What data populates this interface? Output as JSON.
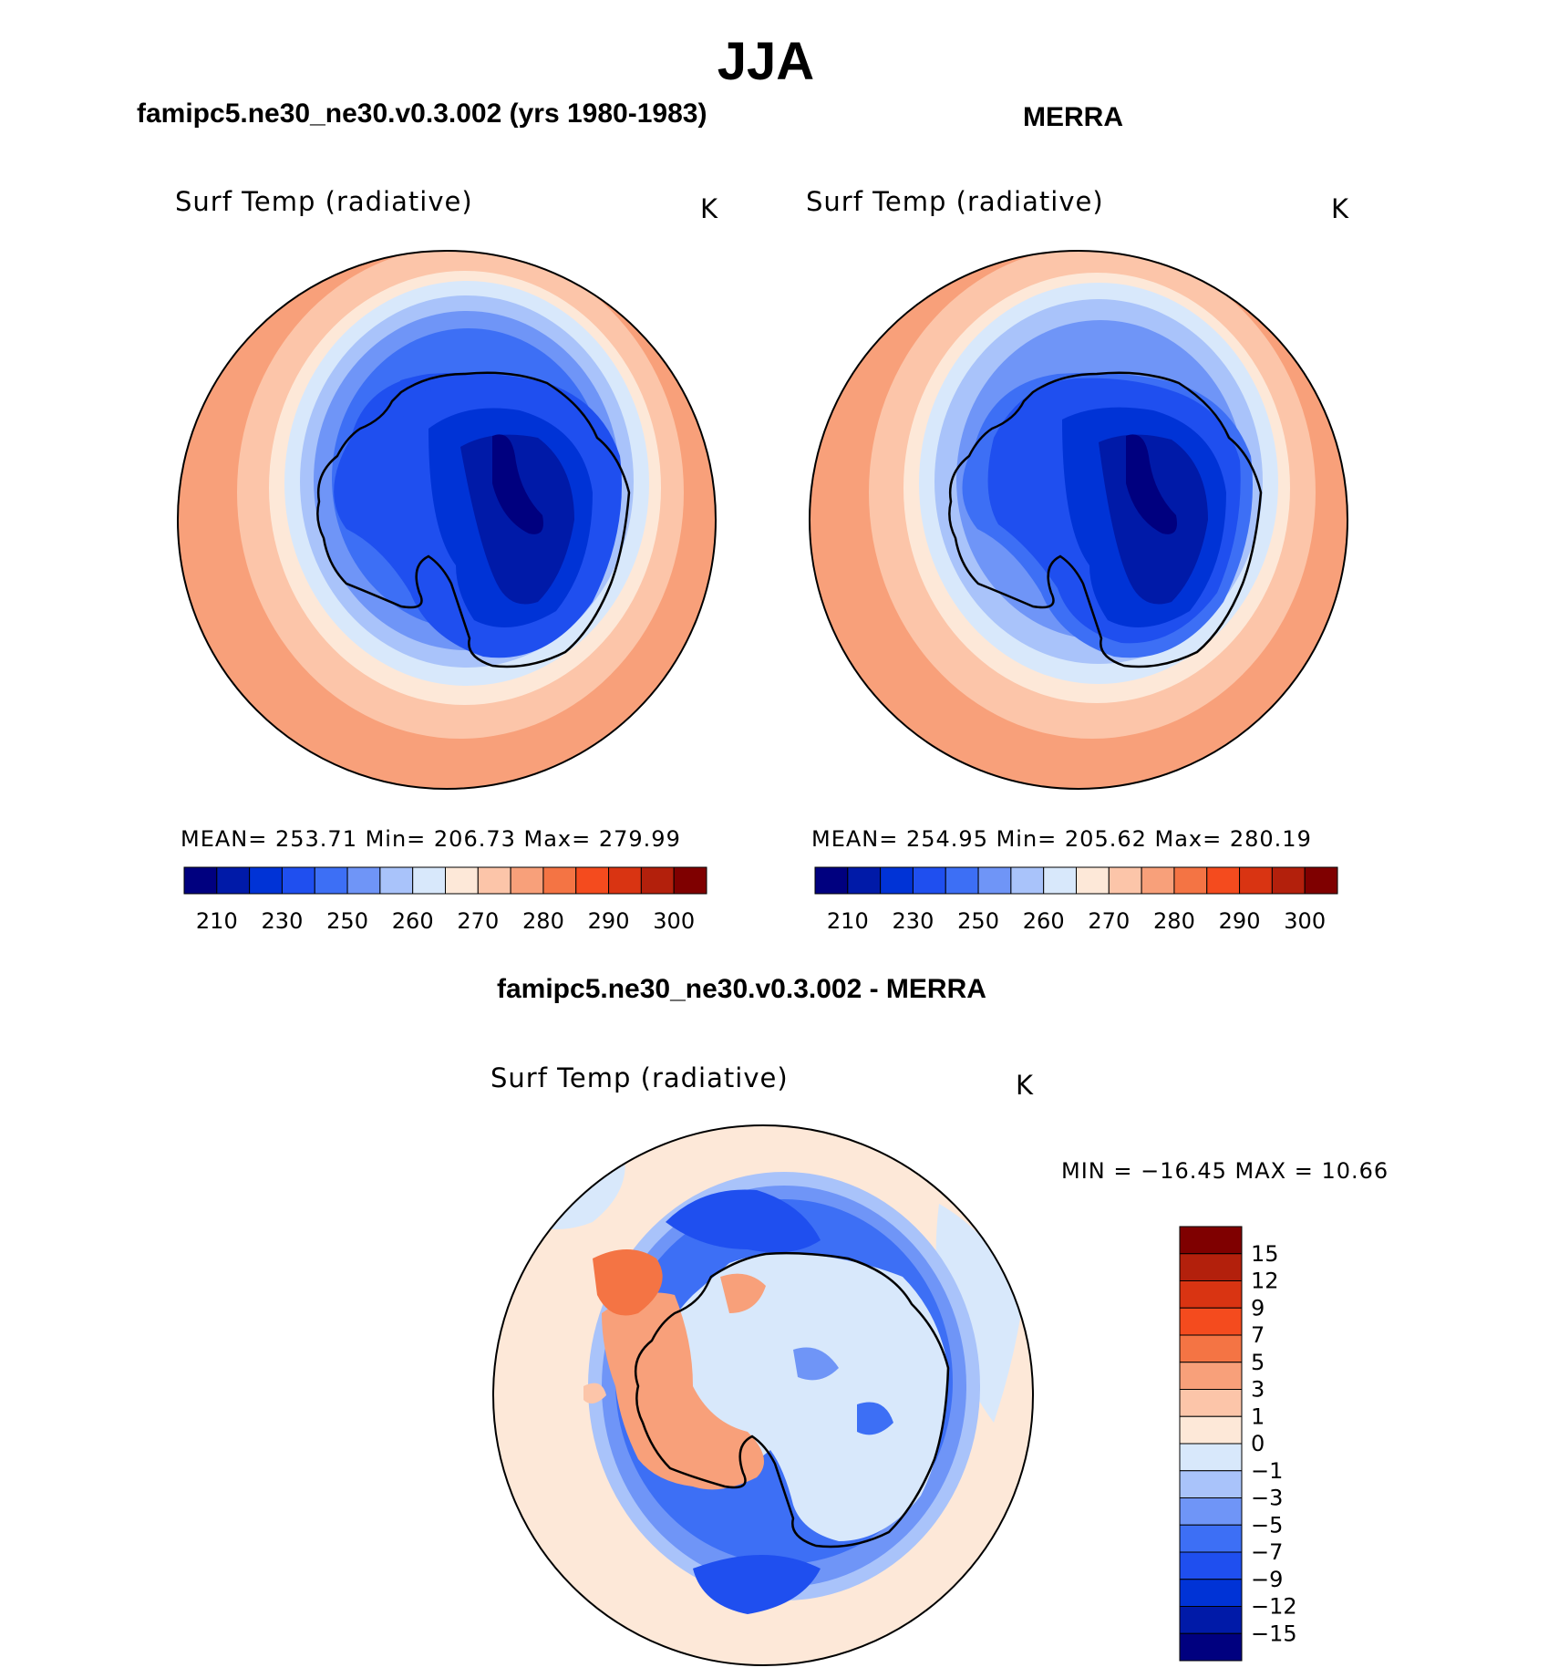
{
  "main_title": "JJA",
  "panels": [
    {
      "title": "famipc5.ne30_ne30.v0.3.002 (yrs 1980-1983)",
      "variable": "Surf Temp (radiative)",
      "units": "K",
      "stats": "MEAN=  253.71   Min=  206.73   Max=  279.99"
    },
    {
      "title": "MERRA",
      "variable": "Surf Temp (radiative)",
      "units": "K",
      "stats": "MEAN=  254.95   Min=  205.62   Max=  280.19"
    },
    {
      "title": "famipc5.ne30_ne30.v0.3.002 - MERRA",
      "variable": "Surf Temp (radiative)",
      "units": "K",
      "stats": "MIN  =  −16.45  MAX  =    10.66"
    }
  ],
  "chart_data": [
    {
      "type": "heatmap",
      "projection": "south-polar-stereographic",
      "title": "famipc5.ne30_ne30.v0.3.002 (yrs 1980-1983)",
      "variable": "Surf Temp (radiative)",
      "units": "K",
      "mean": 253.71,
      "min": 206.73,
      "max": 279.99,
      "colorbar_ticks": [
        "210",
        "230",
        "250",
        "260",
        "270",
        "280",
        "290",
        "300"
      ],
      "colorbar_colors": [
        "#00007f",
        "#001aa8",
        "#0033d6",
        "#1f4fef",
        "#3d6ff5",
        "#6f95f7",
        "#a9c3fa",
        "#d8e8fb",
        "#fde8d8",
        "#fcc5a9",
        "#f8a07a",
        "#f47444",
        "#f44b1e",
        "#d93412",
        "#b3200c",
        "#7f0000"
      ],
      "legend_position": "bottom"
    },
    {
      "type": "heatmap",
      "projection": "south-polar-stereographic",
      "title": "MERRA",
      "variable": "Surf Temp (radiative)",
      "units": "K",
      "mean": 254.95,
      "min": 205.62,
      "max": 280.19,
      "colorbar_ticks": [
        "210",
        "230",
        "250",
        "260",
        "270",
        "280",
        "290",
        "300"
      ],
      "colorbar_colors": [
        "#00007f",
        "#001aa8",
        "#0033d6",
        "#1f4fef",
        "#3d6ff5",
        "#6f95f7",
        "#a9c3fa",
        "#d8e8fb",
        "#fde8d8",
        "#fcc5a9",
        "#f8a07a",
        "#f47444",
        "#f44b1e",
        "#d93412",
        "#b3200c",
        "#7f0000"
      ],
      "legend_position": "bottom"
    },
    {
      "type": "heatmap",
      "projection": "south-polar-stereographic",
      "title": "famipc5.ne30_ne30.v0.3.002 - MERRA",
      "variable": "Surf Temp (radiative)",
      "units": "K",
      "min": -16.45,
      "max": 10.66,
      "colorbar_ticks": [
        "15",
        "12",
        "9",
        "7",
        "5",
        "3",
        "1",
        "0",
        "−1",
        "−3",
        "−5",
        "−7",
        "−9",
        "−12",
        "−15"
      ],
      "colorbar_colors": [
        "#7f0000",
        "#b3200c",
        "#d93412",
        "#f44b1e",
        "#f47444",
        "#f8a07a",
        "#fcc5a9",
        "#fde8d8",
        "#d8e8fb",
        "#a9c3fa",
        "#6f95f7",
        "#3d6ff5",
        "#1f4fef",
        "#0033d6",
        "#001aa8",
        "#00007f"
      ],
      "legend_position": "right"
    }
  ]
}
